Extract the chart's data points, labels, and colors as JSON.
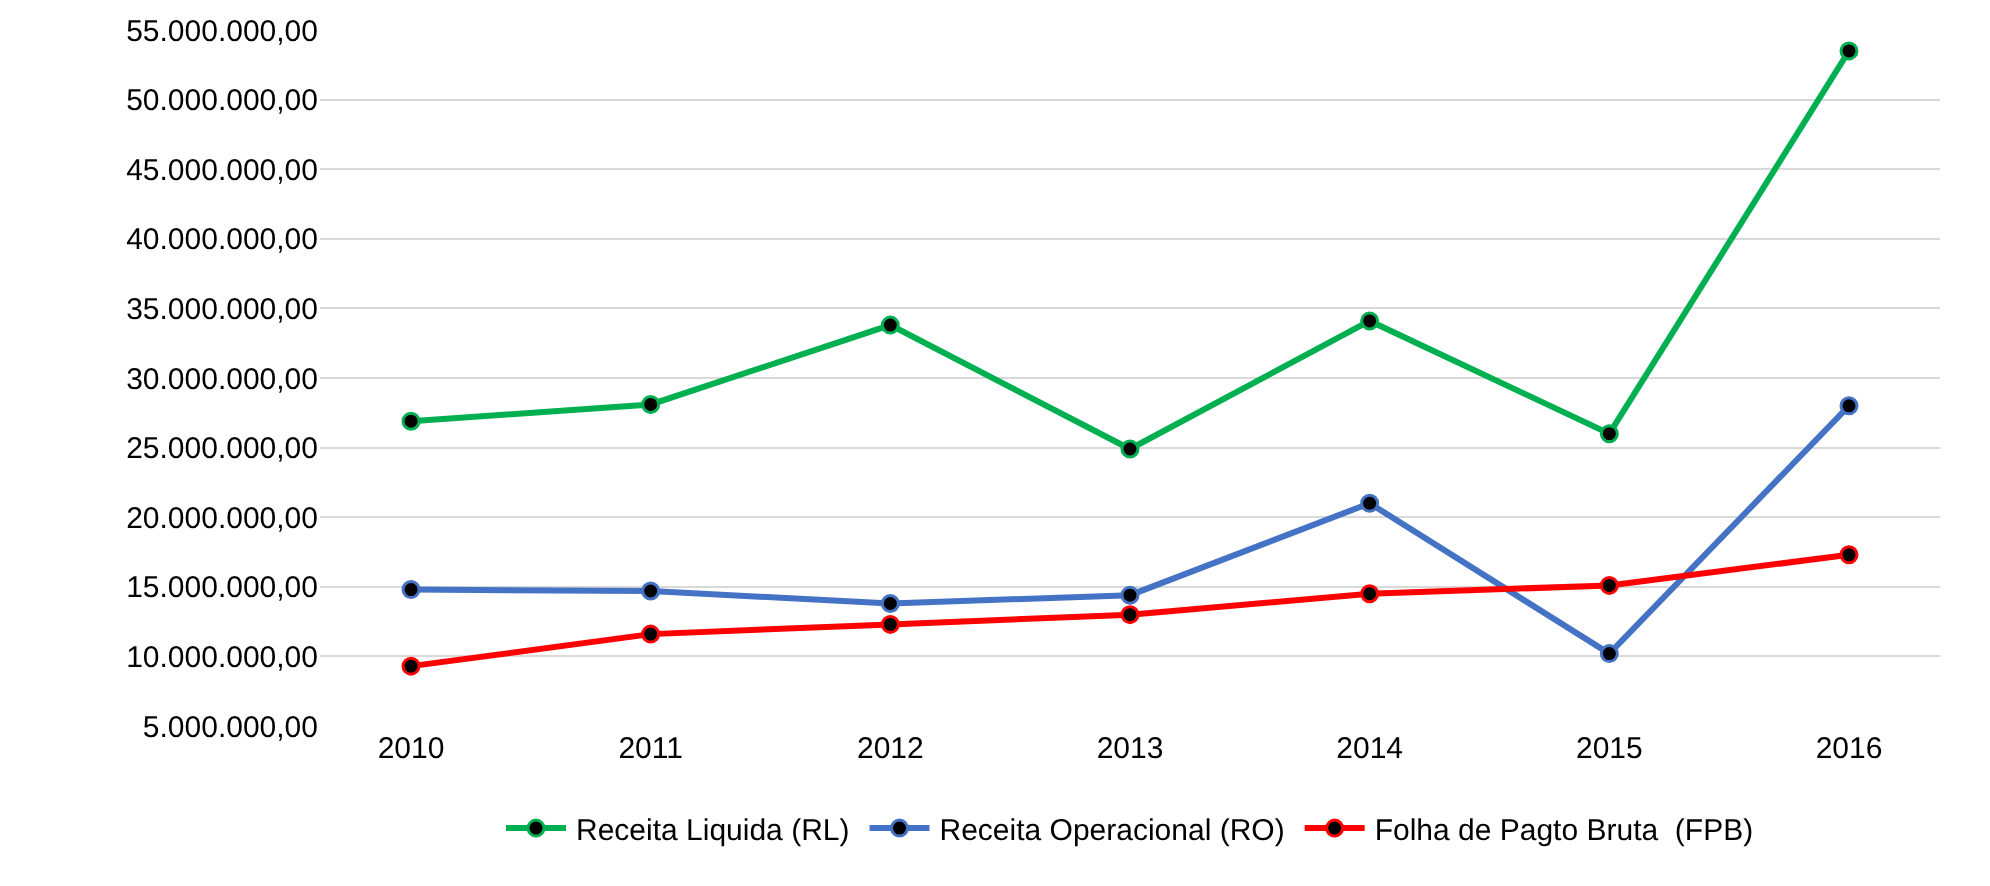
{
  "chart_data": {
    "type": "line",
    "categories": [
      "2010",
      "2011",
      "2012",
      "2013",
      "2014",
      "2015",
      "2016"
    ],
    "series": [
      {
        "name": "Receita Liquida (RL)",
        "color": "#00b050",
        "values": [
          26900000,
          28100000,
          33800000,
          24900000,
          34100000,
          26000000,
          53500000
        ]
      },
      {
        "name": "Receita Operacional (RO)",
        "color": "#4472c4",
        "values": [
          14800000,
          14700000,
          13800000,
          14400000,
          21000000,
          10200000,
          28000000
        ]
      },
      {
        "name": "Folha de Pagto Bruta  (FPB)",
        "color": "#ff0000",
        "values": [
          9300000,
          11600000,
          12300000,
          13000000,
          14500000,
          15100000,
          17300000
        ]
      }
    ],
    "ylim": [
      5000000,
      55000000
    ],
    "yticks": [
      {
        "value": 5000000,
        "label": "5.000.000,00"
      },
      {
        "value": 10000000,
        "label": "10.000.000,00"
      },
      {
        "value": 15000000,
        "label": "15.000.000,00"
      },
      {
        "value": 20000000,
        "label": "20.000.000,00"
      },
      {
        "value": 25000000,
        "label": "25.000.000,00"
      },
      {
        "value": 30000000,
        "label": "30.000.000,00"
      },
      {
        "value": 35000000,
        "label": "35.000.000,00"
      },
      {
        "value": 40000000,
        "label": "40.000.000,00"
      },
      {
        "value": 45000000,
        "label": "45.000.000,00"
      },
      {
        "value": 50000000,
        "label": "50.000.000,00"
      },
      {
        "value": 55000000,
        "label": "55.000.000,00"
      }
    ],
    "grid": "y",
    "legend": "bottom",
    "marker": "circle",
    "line_style": "solid"
  }
}
